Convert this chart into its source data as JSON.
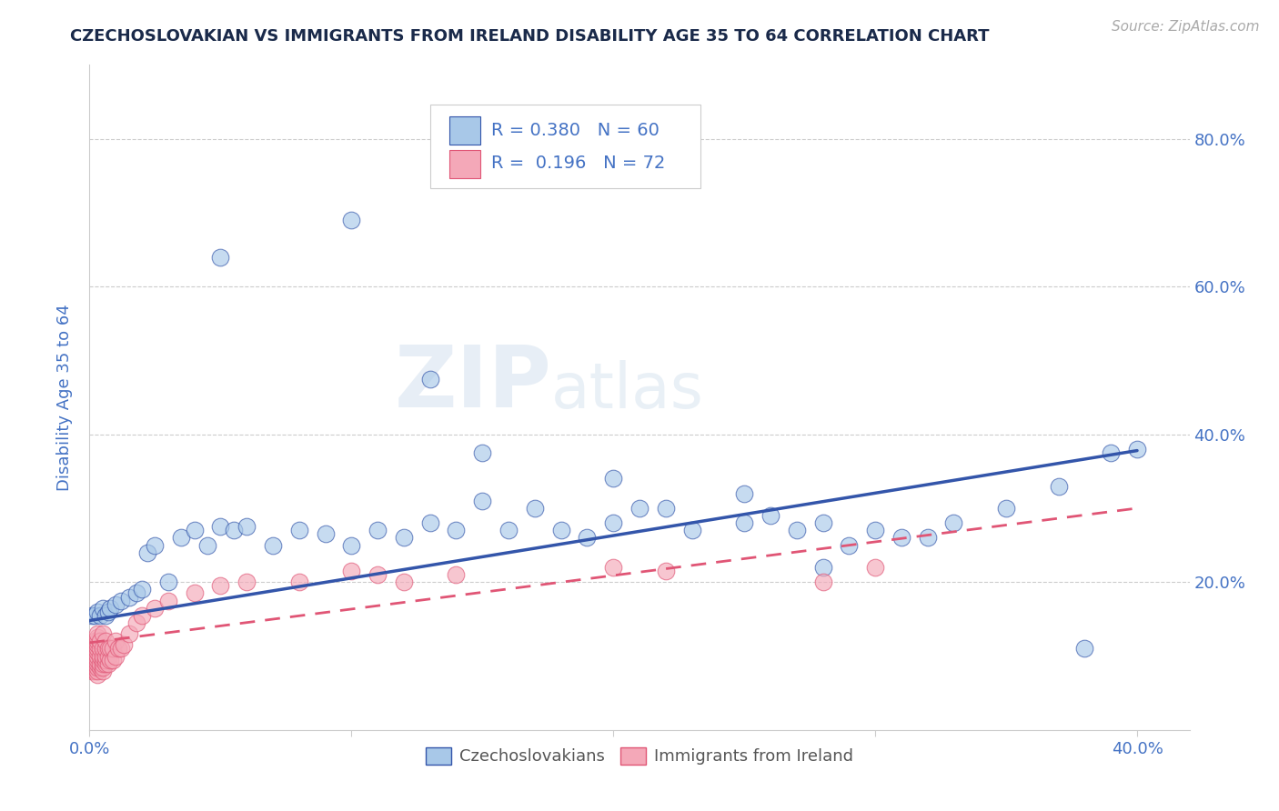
{
  "title": "CZECHOSLOVAKIAN VS IMMIGRANTS FROM IRELAND DISABILITY AGE 35 TO 64 CORRELATION CHART",
  "source": "Source: ZipAtlas.com",
  "ylabel": "Disability Age 35 to 64",
  "xlim": [
    0.0,
    0.42
  ],
  "ylim": [
    0.0,
    0.9
  ],
  "r1": 0.38,
  "n1": 60,
  "r2": 0.196,
  "n2": 72,
  "legend_label1": "Czechoslovakians",
  "legend_label2": "Immigrants from Ireland",
  "color1": "#a8c8e8",
  "color2": "#f4a8b8",
  "line_color1": "#3355aa",
  "line_color2": "#e05575",
  "background_color": "#ffffff",
  "title_color": "#1a2a4a",
  "axis_label_color": "#4472c4",
  "czech_x": [
    0.001,
    0.002,
    0.003,
    0.004,
    0.005,
    0.006,
    0.007,
    0.008,
    0.01,
    0.012,
    0.015,
    0.018,
    0.02,
    0.022,
    0.025,
    0.03,
    0.035,
    0.04,
    0.045,
    0.05,
    0.055,
    0.06,
    0.07,
    0.08,
    0.09,
    0.1,
    0.11,
    0.12,
    0.13,
    0.14,
    0.15,
    0.16,
    0.17,
    0.18,
    0.19,
    0.2,
    0.21,
    0.22,
    0.23,
    0.25,
    0.26,
    0.27,
    0.28,
    0.29,
    0.3,
    0.31,
    0.32,
    0.33,
    0.35,
    0.37,
    0.39,
    0.05,
    0.1,
    0.13,
    0.15,
    0.2,
    0.25,
    0.28,
    0.38,
    0.4
  ],
  "czech_y": [
    0.155,
    0.155,
    0.16,
    0.155,
    0.165,
    0.155,
    0.16,
    0.165,
    0.17,
    0.175,
    0.18,
    0.185,
    0.19,
    0.24,
    0.25,
    0.2,
    0.26,
    0.27,
    0.25,
    0.275,
    0.27,
    0.275,
    0.25,
    0.27,
    0.265,
    0.25,
    0.27,
    0.26,
    0.28,
    0.27,
    0.31,
    0.27,
    0.3,
    0.27,
    0.26,
    0.28,
    0.3,
    0.3,
    0.27,
    0.28,
    0.29,
    0.27,
    0.28,
    0.25,
    0.27,
    0.26,
    0.26,
    0.28,
    0.3,
    0.33,
    0.375,
    0.64,
    0.69,
    0.475,
    0.375,
    0.34,
    0.32,
    0.22,
    0.11,
    0.38
  ],
  "ireland_x": [
    0.001,
    0.001,
    0.001,
    0.001,
    0.001,
    0.002,
    0.002,
    0.002,
    0.002,
    0.002,
    0.002,
    0.002,
    0.002,
    0.002,
    0.003,
    0.003,
    0.003,
    0.003,
    0.003,
    0.003,
    0.003,
    0.003,
    0.003,
    0.003,
    0.003,
    0.003,
    0.004,
    0.004,
    0.004,
    0.004,
    0.004,
    0.005,
    0.005,
    0.005,
    0.005,
    0.005,
    0.005,
    0.005,
    0.006,
    0.006,
    0.006,
    0.006,
    0.006,
    0.007,
    0.007,
    0.007,
    0.008,
    0.008,
    0.009,
    0.009,
    0.01,
    0.01,
    0.011,
    0.012,
    0.013,
    0.015,
    0.018,
    0.02,
    0.025,
    0.03,
    0.04,
    0.05,
    0.06,
    0.08,
    0.1,
    0.11,
    0.12,
    0.14,
    0.2,
    0.22,
    0.28,
    0.3
  ],
  "ireland_y": [
    0.08,
    0.09,
    0.095,
    0.1,
    0.11,
    0.08,
    0.085,
    0.09,
    0.095,
    0.1,
    0.105,
    0.11,
    0.115,
    0.12,
    0.075,
    0.08,
    0.085,
    0.09,
    0.095,
    0.1,
    0.105,
    0.11,
    0.115,
    0.12,
    0.125,
    0.13,
    0.085,
    0.09,
    0.1,
    0.11,
    0.12,
    0.08,
    0.085,
    0.09,
    0.095,
    0.1,
    0.11,
    0.13,
    0.09,
    0.095,
    0.1,
    0.11,
    0.12,
    0.09,
    0.1,
    0.11,
    0.095,
    0.11,
    0.095,
    0.11,
    0.1,
    0.12,
    0.11,
    0.11,
    0.115,
    0.13,
    0.145,
    0.155,
    0.165,
    0.175,
    0.185,
    0.195,
    0.2,
    0.2,
    0.215,
    0.21,
    0.2,
    0.21,
    0.22,
    0.215,
    0.2,
    0.22
  ],
  "line1_x0": 0.0,
  "line1_y0": 0.148,
  "line1_x1": 0.4,
  "line1_y1": 0.378,
  "line2_x0": 0.0,
  "line2_y0": 0.118,
  "line2_x1": 0.4,
  "line2_y1": 0.3
}
